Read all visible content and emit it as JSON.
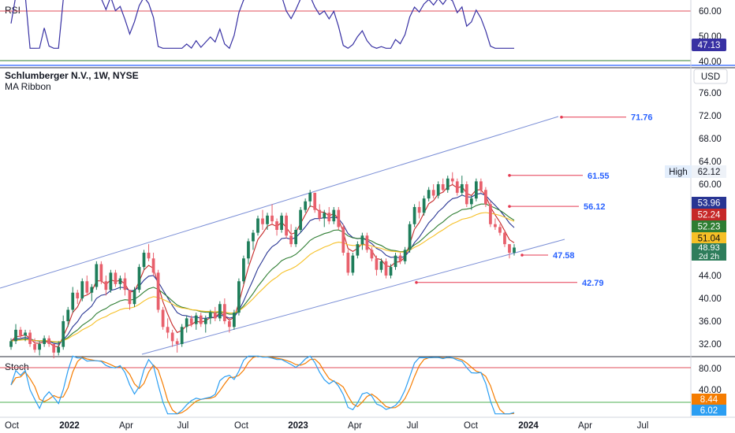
{
  "header": {
    "symbol_line": "Schlumberger N.V., 1W, NYSE",
    "indicator_line": "MA Ribbon",
    "currency": "USD"
  },
  "rsi_panel": {
    "label": "RSI",
    "levels": [
      60,
      50,
      40
    ],
    "tick_labels": [
      "60.00",
      "50.00",
      "40.00"
    ],
    "current_label": "47.13",
    "current_value": 47.13,
    "line_color": "#3730a3",
    "upper_band_color": "#e04e5a",
    "lower_band_color": "#2e7d32"
  },
  "stoch_panel": {
    "label": "Stoch",
    "tick_labels": [
      "80.00",
      "40.00"
    ],
    "levels": [
      80,
      20
    ],
    "k_label": "6.02",
    "d_label": "8.44",
    "k_color": "#2b9ef2",
    "d_color": "#f57c00"
  },
  "x_axis": {
    "labels": [
      "Oct",
      "2022",
      "Apr",
      "Jul",
      "Oct",
      "2023",
      "Apr",
      "Jul",
      "Oct",
      "2024",
      "Apr",
      "Jul"
    ],
    "bold": [
      false,
      true,
      false,
      false,
      false,
      true,
      false,
      false,
      false,
      true,
      false,
      false
    ]
  },
  "price_axis": {
    "tick_labels": [
      "76.00",
      "72.00",
      "68.00",
      "64.00",
      "60.00",
      "56.00",
      "52.00",
      "48.00",
      "44.00",
      "40.00",
      "36.00",
      "32.00"
    ],
    "tick_values": [
      76,
      72,
      68,
      64,
      60,
      56,
      52,
      48,
      44,
      40,
      36,
      32
    ]
  },
  "price_badges": [
    {
      "text": "53.96",
      "value": 53.96,
      "bg": "#283593",
      "fg": "#ffffff"
    },
    {
      "text": "52.24",
      "value": 52.24,
      "bg": "#c62828",
      "fg": "#ffffff"
    },
    {
      "text": "52.23",
      "value": 52.23,
      "bg": "#2e7d32",
      "fg": "#ffffff"
    },
    {
      "text": "51.04",
      "value": 51.04,
      "bg": "#f6c026",
      "fg": "#111111"
    },
    {
      "text": "48.93",
      "value": 48.93,
      "bg": "#2e7d5b",
      "fg": "#ffffff"
    },
    {
      "text": "2d 2h",
      "value": 48.93,
      "bg": "#2e7d5b",
      "fg": "#ffffff"
    }
  ],
  "high_badge": {
    "label": "High",
    "value_text": "62.12",
    "value": 62.12
  },
  "annotations": [
    {
      "text": "71.76",
      "value": 71.76,
      "color": "#2962ff",
      "line_color": "#e53950"
    },
    {
      "text": "61.55",
      "value": 61.55,
      "color": "#2962ff",
      "line_color": "#e53950"
    },
    {
      "text": "56.12",
      "value": 56.12,
      "color": "#2962ff",
      "line_color": "#e53950"
    },
    {
      "text": "47.58",
      "value": 47.58,
      "color": "#2962ff",
      "line_color": "#e53950"
    },
    {
      "text": "42.79",
      "value": 42.79,
      "color": "#2962ff",
      "line_color": "#e53950"
    }
  ],
  "chart_data": {
    "type": "candlestick",
    "title": "Schlumberger N.V., 1W, NYSE",
    "subtitle": "MA Ribbon",
    "ylim": [
      30,
      78
    ],
    "timeframe": "1W",
    "up_color": "#1e7d5a",
    "down_color": "#e8606c",
    "candles_approx": [
      [
        31.5,
        33.0,
        31.0,
        32.5
      ],
      [
        32.5,
        35.5,
        32.0,
        34.5
      ],
      [
        34.5,
        35.0,
        33.0,
        33.5
      ],
      [
        33.5,
        34.5,
        32.5,
        34.0
      ],
      [
        34.0,
        34.5,
        31.5,
        32.0
      ],
      [
        32.0,
        33.0,
        30.5,
        31.0
      ],
      [
        31.0,
        32.5,
        30.0,
        32.0
      ],
      [
        32.0,
        33.5,
        31.5,
        33.0
      ],
      [
        33.0,
        33.5,
        31.5,
        32.0
      ],
      [
        32.0,
        31.5,
        29.5,
        30.5
      ],
      [
        30.5,
        32.5,
        30.0,
        31.5
      ],
      [
        31.5,
        37.0,
        31.0,
        36.0
      ],
      [
        36.0,
        38.5,
        35.0,
        38.0
      ],
      [
        38.0,
        42.0,
        37.5,
        41.0
      ],
      [
        41.0,
        41.5,
        39.0,
        40.0
      ],
      [
        40.0,
        43.5,
        39.5,
        43.0
      ],
      [
        43.0,
        44.0,
        40.5,
        41.0
      ],
      [
        41.0,
        42.5,
        39.5,
        42.0
      ],
      [
        42.0,
        46.5,
        41.5,
        46.0
      ],
      [
        46.0,
        46.5,
        42.5,
        43.0
      ],
      [
        43.0,
        44.0,
        40.5,
        41.5
      ],
      [
        41.5,
        45.0,
        41.0,
        44.5
      ],
      [
        44.5,
        45.0,
        42.0,
        42.5
      ],
      [
        42.5,
        44.0,
        41.5,
        43.5
      ],
      [
        43.5,
        44.5,
        40.5,
        41.5
      ],
      [
        41.5,
        41.5,
        38.0,
        39.0
      ],
      [
        39.0,
        42.0,
        38.5,
        41.5
      ],
      [
        41.5,
        46.0,
        41.0,
        45.5
      ],
      [
        45.5,
        48.5,
        45.0,
        48.0
      ],
      [
        48.0,
        49.5,
        46.5,
        47.0
      ],
      [
        47.0,
        48.0,
        44.0,
        44.5
      ],
      [
        44.5,
        45.0,
        37.5,
        38.0
      ],
      [
        38.0,
        38.5,
        34.5,
        35.0
      ],
      [
        35.0,
        36.5,
        33.0,
        34.0
      ],
      [
        34.0,
        34.5,
        31.5,
        32.5
      ],
      [
        32.5,
        33.0,
        30.5,
        32.0
      ],
      [
        32.0,
        35.5,
        31.5,
        35.0
      ],
      [
        35.0,
        37.0,
        34.0,
        36.5
      ],
      [
        36.5,
        37.0,
        35.0,
        35.5
      ],
      [
        35.5,
        37.5,
        34.5,
        37.0
      ],
      [
        37.0,
        37.5,
        35.0,
        35.5
      ],
      [
        35.5,
        37.0,
        34.0,
        36.5
      ],
      [
        36.5,
        38.0,
        35.5,
        37.5
      ],
      [
        37.5,
        38.5,
        36.0,
        36.5
      ],
      [
        36.5,
        39.5,
        36.0,
        39.0
      ],
      [
        39.0,
        40.0,
        35.5,
        36.0
      ],
      [
        36.0,
        36.5,
        34.0,
        35.0
      ],
      [
        35.0,
        38.0,
        34.5,
        37.5
      ],
      [
        37.5,
        43.5,
        37.0,
        43.0
      ],
      [
        43.0,
        47.5,
        42.5,
        47.0
      ],
      [
        47.0,
        50.5,
        46.0,
        50.0
      ],
      [
        50.0,
        52.0,
        48.5,
        51.5
      ],
      [
        51.5,
        54.5,
        51.0,
        54.0
      ],
      [
        54.0,
        55.5,
        52.0,
        53.0
      ],
      [
        53.0,
        55.0,
        52.0,
        54.5
      ],
      [
        54.5,
        56.5,
        53.0,
        53.5
      ],
      [
        53.5,
        54.0,
        51.0,
        52.0
      ],
      [
        52.0,
        55.0,
        51.5,
        54.5
      ],
      [
        54.5,
        55.0,
        50.5,
        51.0
      ],
      [
        51.0,
        53.0,
        49.0,
        49.5
      ],
      [
        49.5,
        52.5,
        49.0,
        52.0
      ],
      [
        52.0,
        56.0,
        51.5,
        55.5
      ],
      [
        55.5,
        57.5,
        55.0,
        57.0
      ],
      [
        57.0,
        59.0,
        56.0,
        58.5
      ],
      [
        58.5,
        58.5,
        55.0,
        55.5
      ],
      [
        55.5,
        56.5,
        53.5,
        54.0
      ],
      [
        54.0,
        55.5,
        52.5,
        55.0
      ],
      [
        55.0,
        56.0,
        53.0,
        53.5
      ],
      [
        53.5,
        56.0,
        53.0,
        55.5
      ],
      [
        55.5,
        56.0,
        52.0,
        52.5
      ],
      [
        52.5,
        53.0,
        47.5,
        48.0
      ],
      [
        48.0,
        48.5,
        44.0,
        44.5
      ],
      [
        44.5,
        48.0,
        44.0,
        47.5
      ],
      [
        47.5,
        50.0,
        47.0,
        49.5
      ],
      [
        49.5,
        51.5,
        48.5,
        51.0
      ],
      [
        51.0,
        51.5,
        48.0,
        48.5
      ],
      [
        48.5,
        49.0,
        46.5,
        47.0
      ],
      [
        47.0,
        47.5,
        44.0,
        45.0
      ],
      [
        45.0,
        47.0,
        44.5,
        46.5
      ],
      [
        46.5,
        47.0,
        43.5,
        44.0
      ],
      [
        44.0,
        46.0,
        43.5,
        45.5
      ],
      [
        45.5,
        48.0,
        45.0,
        47.5
      ],
      [
        47.5,
        48.0,
        46.0,
        46.5
      ],
      [
        46.5,
        49.0,
        46.0,
        48.5
      ],
      [
        48.5,
        53.5,
        48.0,
        53.0
      ],
      [
        53.0,
        56.5,
        52.5,
        56.0
      ],
      [
        56.0,
        57.0,
        54.0,
        55.0
      ],
      [
        55.0,
        58.0,
        54.5,
        57.5
      ],
      [
        57.5,
        59.5,
        57.0,
        59.0
      ],
      [
        59.0,
        60.0,
        57.5,
        58.0
      ],
      [
        58.0,
        60.5,
        57.5,
        60.0
      ],
      [
        60.0,
        61.0,
        58.5,
        59.0
      ],
      [
        59.0,
        61.5,
        58.5,
        61.0
      ],
      [
        61.0,
        62.1,
        60.0,
        60.5
      ],
      [
        60.5,
        61.0,
        58.0,
        58.5
      ],
      [
        58.5,
        61.5,
        58.0,
        60.0
      ],
      [
        60.0,
        60.5,
        56.0,
        56.5
      ],
      [
        56.5,
        58.0,
        55.5,
        57.5
      ],
      [
        57.5,
        61.0,
        57.0,
        60.5
      ],
      [
        60.5,
        61.0,
        58.5,
        59.0
      ],
      [
        59.0,
        59.5,
        56.0,
        56.5
      ],
      [
        56.5,
        57.0,
        52.5,
        53.0
      ],
      [
        53.0,
        54.0,
        52.0,
        52.5
      ],
      [
        52.5,
        53.0,
        51.0,
        51.5
      ],
      [
        51.5,
        52.0,
        49.0,
        49.5
      ],
      [
        49.5,
        49.5,
        47.0,
        48.0
      ],
      [
        48.0,
        49.5,
        47.5,
        48.9
      ]
    ]
  }
}
